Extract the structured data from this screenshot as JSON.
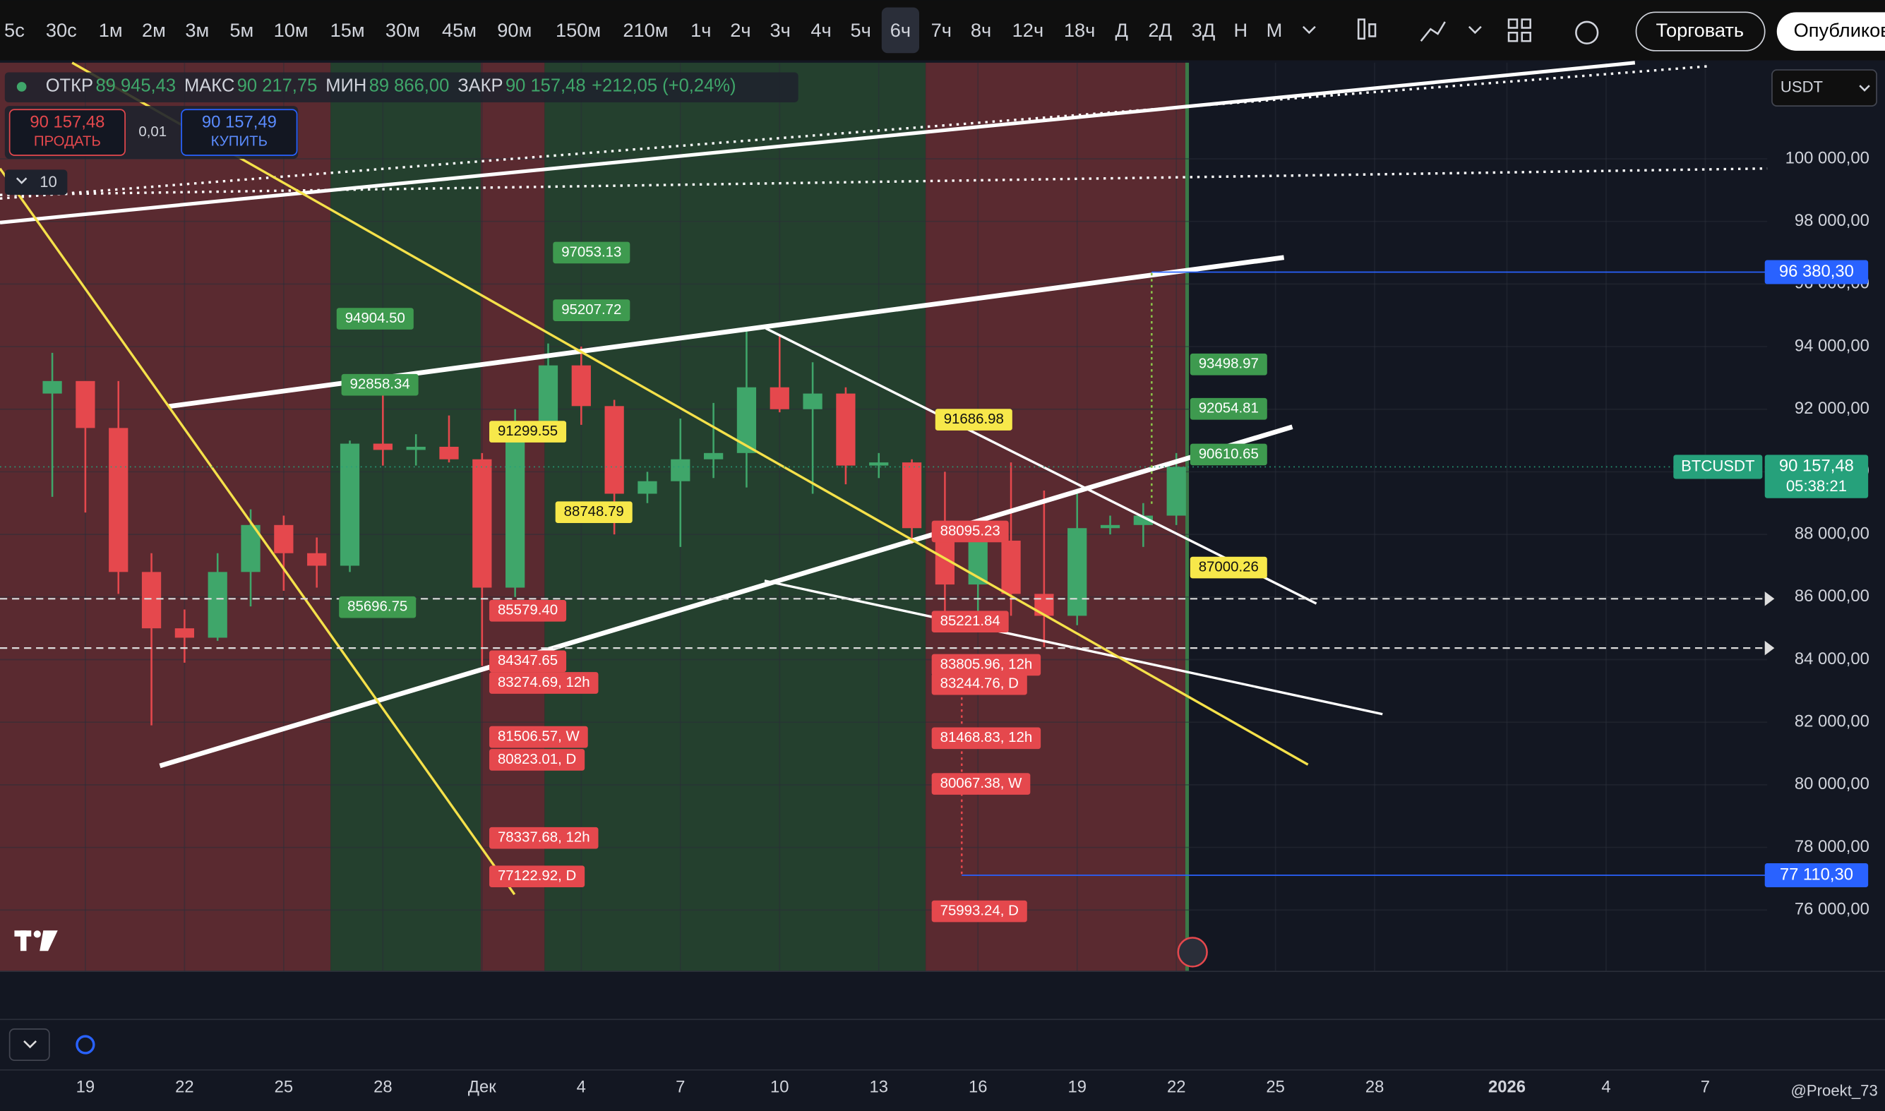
{
  "toolbar": {
    "intervals": [
      {
        "label": "5с"
      },
      {
        "label": "30с"
      },
      {
        "label": "1м"
      },
      {
        "label": "2м"
      },
      {
        "label": "3м"
      },
      {
        "label": "5м"
      },
      {
        "label": "10м"
      },
      {
        "label": "15м"
      },
      {
        "label": "30м"
      },
      {
        "label": "45м"
      },
      {
        "label": "90м"
      },
      {
        "label": "150м"
      },
      {
        "label": "210м"
      },
      {
        "label": "1ч"
      },
      {
        "label": "2ч"
      },
      {
        "label": "3ч"
      },
      {
        "label": "4ч"
      },
      {
        "label": "5ч"
      },
      {
        "label": "6ч",
        "active": true
      },
      {
        "label": "7ч"
      },
      {
        "label": "8ч"
      },
      {
        "label": "12ч"
      },
      {
        "label": "18ч"
      },
      {
        "label": "Д"
      },
      {
        "label": "2Д"
      },
      {
        "label": "3Д"
      },
      {
        "label": "Н"
      },
      {
        "label": "М"
      }
    ],
    "trade_button": "Торговать",
    "publish_button": "Опубликовать"
  },
  "legend": {
    "items": [
      {
        "label": "ОТКР",
        "value": "89 945,43"
      },
      {
        "label": "МАКС",
        "value": "90 217,75"
      },
      {
        "label": "МИН",
        "value": "89 866,00"
      },
      {
        "label": "ЗАКР",
        "value": "90 157,48"
      }
    ],
    "change": "+212,05 (+0,24%)"
  },
  "order": {
    "sell_price": "90 157,48",
    "sell_label": "ПРОДАТЬ",
    "spread": "0,01",
    "buy_price": "90 157,49",
    "buy_label": "КУПИТЬ"
  },
  "indicator_count": "10",
  "currency": "USDT",
  "watermark": "@Proekt_73",
  "chart_data": {
    "type": "candlestick",
    "categories": [
      null,
      "19",
      null,
      null,
      "22",
      null,
      null,
      "25",
      null,
      null,
      "28",
      null,
      null,
      "Дек",
      null,
      null,
      "4",
      null,
      null,
      "7",
      null,
      null,
      "10",
      null,
      null,
      "13",
      null,
      null,
      "16",
      null,
      null,
      "19",
      null,
      null,
      "22",
      null,
      null,
      "25",
      null,
      null,
      "28",
      null,
      null,
      null,
      "2026",
      null,
      null,
      "4",
      null,
      null,
      "7"
    ],
    "open": [
      92500,
      92900,
      91400,
      86800,
      85000,
      84700,
      86800,
      88300,
      87400,
      87000,
      90900,
      90700,
      90800,
      90400,
      86300,
      91300,
      93400,
      92100,
      89300,
      89700,
      90400,
      90600,
      92700,
      92000,
      92500,
      90200,
      90300,
      88200,
      86400,
      87800,
      86100,
      85400,
      88200,
      88300,
      88600,
      null,
      null,
      null,
      null,
      null,
      null,
      null,
      null,
      null,
      null,
      null,
      null,
      null,
      null,
      null,
      null
    ],
    "high": [
      93800,
      92900,
      92900,
      87400,
      85600,
      87400,
      88800,
      88600,
      87900,
      91000,
      92900,
      91200,
      91800,
      90600,
      92000,
      94100,
      94000,
      92300,
      90000,
      91700,
      92200,
      94600,
      94400,
      93500,
      92700,
      90600,
      90400,
      90000,
      88100,
      90300,
      89400,
      89300,
      88600,
      89000,
      90600,
      null,
      null,
      null,
      null,
      null,
      null,
      null,
      null,
      null,
      null,
      null,
      null,
      null,
      null,
      null,
      null
    ],
    "low": [
      89200,
      88700,
      86100,
      81900,
      83900,
      84600,
      85700,
      86200,
      86300,
      86800,
      90200,
      90200,
      90300,
      83800,
      86000,
      91000,
      91500,
      88000,
      89000,
      87600,
      89800,
      89500,
      91900,
      89300,
      89600,
      89800,
      87700,
      85200,
      85300,
      85400,
      84400,
      85100,
      88000,
      87600,
      88300,
      null,
      null,
      null,
      null,
      null,
      null,
      null,
      null,
      null,
      null,
      null,
      null,
      null,
      null,
      null,
      null
    ],
    "close": [
      92900,
      91400,
      86800,
      85000,
      84700,
      86800,
      88300,
      87400,
      87000,
      90900,
      90700,
      90800,
      90400,
      86300,
      91300,
      93400,
      92100,
      89300,
      89700,
      90400,
      90600,
      92700,
      92000,
      92500,
      90200,
      90300,
      88200,
      86400,
      87800,
      86100,
      85400,
      88200,
      88300,
      88600,
      90157.48,
      null,
      null,
      null,
      null,
      null,
      null,
      null,
      null,
      null,
      null,
      null,
      null,
      null,
      null,
      null,
      null
    ],
    "up_color": "#3fa66a",
    "down_color": "#e5484d",
    "ylim": [
      74040,
      103070
    ],
    "yticks": [
      {
        "value": 76000,
        "label": "76 000,00"
      },
      {
        "value": 78000,
        "label": "78 000,00"
      },
      {
        "value": 80000,
        "label": "80 000,00"
      },
      {
        "value": 82000,
        "label": "82 000,00"
      },
      {
        "value": 84000,
        "label": "84 000,00"
      },
      {
        "value": 86000,
        "label": "86 000,00"
      },
      {
        "value": 88000,
        "label": "88 000,00"
      },
      {
        "value": 90000,
        "label": "90 000,00"
      },
      {
        "value": 92000,
        "label": "92 000,00"
      },
      {
        "value": 94000,
        "label": "94 000,00"
      },
      {
        "value": 96000,
        "label": "96 000,00"
      },
      {
        "value": 98000,
        "label": "98 000,00"
      },
      {
        "value": 100000,
        "label": "100 000,00"
      }
    ],
    "grid": true,
    "price_lines": [
      {
        "value": 96380.3,
        "label": "96 380,30",
        "color": "#2962ff"
      },
      {
        "value": 77110.3,
        "label": "77 110,30",
        "color": "#2962ff"
      }
    ],
    "last_price": {
      "symbol": "BTCUSDT",
      "value": 90157.48,
      "label": "90 157,48",
      "countdown": "05:38:21",
      "color": "#26a17b"
    },
    "annotations": [
      {
        "text": "97053.13",
        "color": "#3e9a4f"
      },
      {
        "text": "95207.72",
        "color": "#3e9a4f"
      },
      {
        "text": "94904.50",
        "color": "#3e9a4f"
      },
      {
        "text": "92858.34",
        "color": "#3e9a4f"
      },
      {
        "text": "85696.75",
        "color": "#3e9a4f"
      },
      {
        "text": "93498.97",
        "color": "#3e9a4f"
      },
      {
        "text": "92054.81",
        "color": "#3e9a4f"
      },
      {
        "text": "90610.65",
        "color": "#3e9a4f"
      },
      {
        "text": "91299.55",
        "color": "#f7e84a"
      },
      {
        "text": "88748.79",
        "color": "#f7e84a"
      },
      {
        "text": "91686.98",
        "color": "#f7e84a"
      },
      {
        "text": "87000.26",
        "color": "#f7e84a"
      },
      {
        "text": "85579.40",
        "color": "#e5484d"
      },
      {
        "text": "84347.65",
        "color": "#e5484d"
      },
      {
        "text": "83274.69, 12h",
        "color": "#e5484d"
      },
      {
        "text": "81506.57, W",
        "color": "#e5484d"
      },
      {
        "text": "80823.01, D",
        "color": "#e5484d"
      },
      {
        "text": "78337.68, 12h",
        "color": "#e5484d"
      },
      {
        "text": "77122.92, D",
        "color": "#e5484d"
      },
      {
        "text": "88095.23",
        "color": "#e5484d"
      },
      {
        "text": "85221.84",
        "color": "#e5484d"
      },
      {
        "text": "83805.96, 12h",
        "color": "#e5484d"
      },
      {
        "text": "83244.76, D",
        "color": "#e5484d"
      },
      {
        "text": "81468.83, 12h",
        "color": "#e5484d"
      },
      {
        "text": "80067.38, W",
        "color": "#e5484d"
      },
      {
        "text": "75993.24, D",
        "color": "#e5484d"
      }
    ]
  }
}
